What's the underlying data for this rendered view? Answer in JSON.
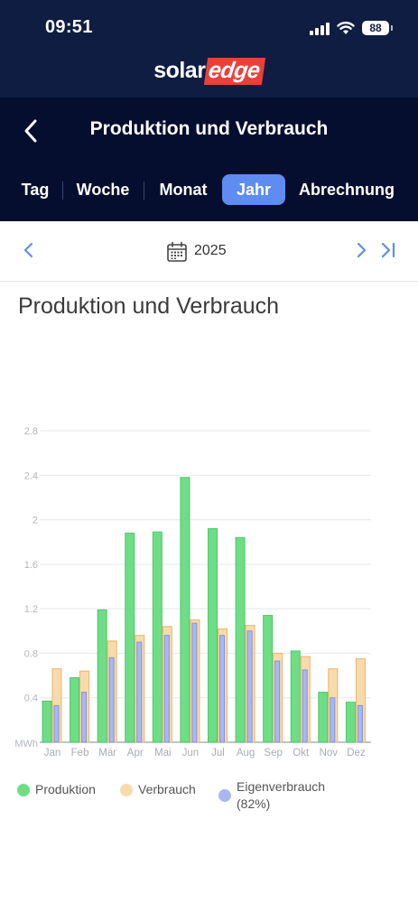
{
  "status_bar": {
    "time": "09:51",
    "battery": "88"
  },
  "brand": {
    "part1": "solar",
    "part2": "edge"
  },
  "header": {
    "title": "Produktion und Verbrauch"
  },
  "tabs": [
    {
      "label": "Tag",
      "active": false
    },
    {
      "label": "Woche",
      "active": false
    },
    {
      "label": "Monat",
      "active": false
    },
    {
      "label": "Jahr",
      "active": true
    },
    {
      "label": "Abrechnung",
      "active": false
    }
  ],
  "date_nav": {
    "label": "2025"
  },
  "colors": {
    "production": "#6ede86",
    "consumption": "#f8dbad",
    "self": "#aab8f0",
    "accent": "#5f8cf0"
  },
  "chart_data": {
    "type": "bar",
    "title": "Produktion und Verbrauch",
    "ylabel": "MWh",
    "ylim": [
      0,
      2.8
    ],
    "yticks": [
      0.4,
      0.8,
      1.2,
      1.6,
      2,
      2.4,
      2.8
    ],
    "categories": [
      "Jan",
      "Feb",
      "Mär",
      "Apr",
      "Mai",
      "Jun",
      "Jul",
      "Aug",
      "Sep",
      "Okt",
      "Nov",
      "Dez"
    ],
    "series": [
      {
        "name": "Produktion",
        "values": [
          0.37,
          0.58,
          1.19,
          1.88,
          1.89,
          2.38,
          1.92,
          1.84,
          1.14,
          0.82,
          0.45,
          0.36
        ]
      },
      {
        "name": "Verbrauch",
        "values": [
          0.66,
          0.64,
          0.91,
          0.96,
          1.04,
          1.1,
          1.02,
          1.05,
          0.8,
          0.77,
          0.66,
          0.75
        ]
      },
      {
        "name": "Eigenverbrauch",
        "values": [
          0.33,
          0.45,
          0.76,
          0.9,
          0.96,
          1.07,
          0.96,
          1.0,
          0.73,
          0.65,
          0.4,
          0.33
        ]
      }
    ]
  },
  "legend": {
    "production": "Produktion",
    "consumption": "Verbrauch",
    "self_consumption": "Eigenverbrauch",
    "self_consumption_pct": "(82%)"
  }
}
